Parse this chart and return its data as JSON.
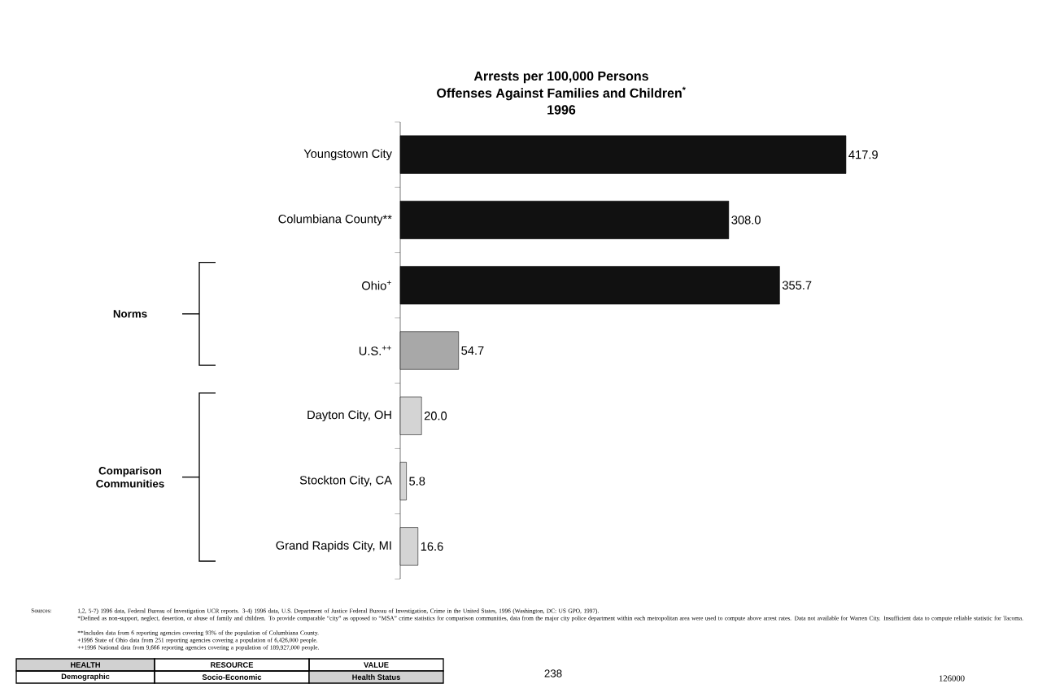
{
  "chart_data": {
    "type": "bar",
    "orientation": "horizontal",
    "title": "Arrests per 100,000 Persons",
    "subtitle": "Offenses Against Families and Children$^{*}$",
    "categories": [
      "Youngstown City",
      "Columbiana County**",
      "Ohio$^{+}$",
      "U.S.$^{++}$",
      "Dayton City, OH",
      "Stockton City, CA",
      "Grand Rapids City, MI"
    ],
    "values": [
      417.9,
      308.0,
      355.7,
      54.7,
      20.0,
      5.8,
      16.6
    ],
    "colors": [
      "#111111",
      "#111111",
      "#111111",
      "#a8a8a8",
      "#d4d4d4",
      "#d4d4d4",
      "#d4d4d4"
    ],
    "value_labels": [
      "417.9",
      "308.0",
      "355.7",
      "54.7",
      "20.0",
      "5.8",
      "16.6"
    ],
    "annotations": [
      "1996",
      "Norms",
      "Comparison Communities",
      "Sources:",
      "1,2, 5-7) 1996 data, Federal Bureau of Investigation UCR reports. 3-4) 1996 data, U.S. Department of Justice Federal Bureau of Investigation, Crime in the United States, 1996 (Washington, DC: US GPO, 1997).",
      "*Defined as non-support, neglect, desertion, or abuse of family and children. To provide comparable “city” as opposed to “MSA” crime statistics for comparison communities, data from the major city police department within each metropolitan area were used to compute above arrest rates. Data not available for Warren City. Insufficient data to compute reliable statistic for Tacoma.",
      "**Includes data from 6 reporting agencies covering 93% of the population of Columbiana County.",
      "+1996 State of Ohio data from 251 reporting agencies covering a population of 6,426,000 people.",
      "++1996 National data from 9,666 reporting agencies covering a population of 189,927,000 people.",
      "HEALTH",
      "RESOURCE",
      "VALUE",
      "Demographic",
      "Socio-Economic",
      "Health Status",
      "238",
      "126000"
    ]
  }
}
